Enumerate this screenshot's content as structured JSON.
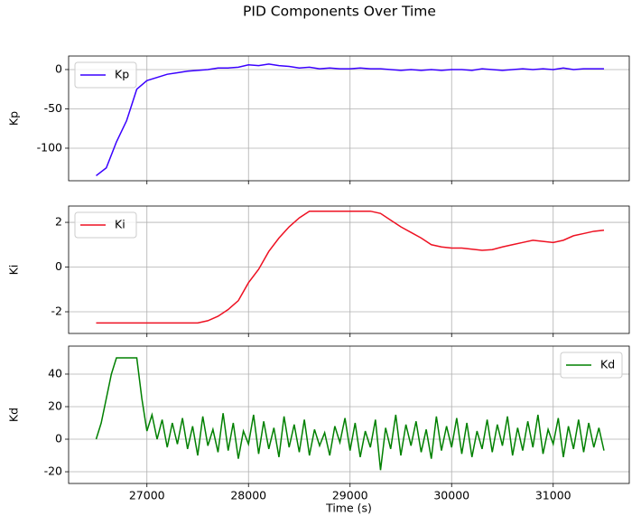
{
  "title": "PID Components Over Time",
  "chart_data": [
    {
      "type": "line",
      "ylabel": "Kp",
      "legend": "upper left",
      "grid": true,
      "xlim": [
        26229,
        31749
      ],
      "xticks": [
        27000,
        28000,
        29000,
        30000,
        31000
      ],
      "ylim": [
        -141.4,
        17.2
      ],
      "yticks": [
        -100,
        -50,
        0
      ],
      "x": [
        26500,
        26600,
        26700,
        26800,
        26900,
        27000,
        27100,
        27200,
        27300,
        27400,
        27500,
        27600,
        27700,
        27800,
        27900,
        28000,
        28100,
        28200,
        28300,
        28400,
        28500,
        28600,
        28700,
        28800,
        28900,
        29000,
        29100,
        29200,
        29300,
        29400,
        29500,
        29600,
        29700,
        29800,
        29900,
        30000,
        30100,
        30200,
        30300,
        30400,
        30500,
        30600,
        30700,
        30800,
        30900,
        31000,
        31100,
        31200,
        31300,
        31400,
        31500
      ],
      "series": [
        {
          "name": "Kp",
          "color": "#3a00ff",
          "values": [
            -135,
            -125,
            -92,
            -65,
            -25,
            -14,
            -10,
            -6,
            -4,
            -2,
            -1,
            0,
            2,
            2,
            3,
            6,
            5,
            7,
            5,
            4,
            2,
            3,
            1,
            2,
            1,
            1,
            2,
            1,
            1,
            0,
            -1,
            0,
            -1,
            0,
            -1,
            0,
            0,
            -1,
            1,
            0,
            -1,
            0,
            1,
            0,
            1,
            0,
            2,
            0,
            1,
            1,
            1
          ]
        }
      ]
    },
    {
      "type": "line",
      "ylabel": "Ki",
      "legend": "upper left",
      "grid": true,
      "xlim": [
        26229,
        31749
      ],
      "xticks": [
        27000,
        28000,
        29000,
        30000,
        31000
      ],
      "ylim": [
        -2.97,
        2.73
      ],
      "yticks": [
        -2,
        0,
        2
      ],
      "x": [
        26500,
        26600,
        26700,
        26800,
        26900,
        27000,
        27100,
        27200,
        27300,
        27400,
        27500,
        27600,
        27700,
        27800,
        27900,
        28000,
        28100,
        28200,
        28300,
        28400,
        28500,
        28600,
        28700,
        28800,
        28900,
        29000,
        29100,
        29200,
        29300,
        29400,
        29500,
        29600,
        29700,
        29800,
        29900,
        30000,
        30100,
        30200,
        30300,
        30400,
        30500,
        30600,
        30700,
        30800,
        30900,
        31000,
        31100,
        31200,
        31300,
        31400,
        31500
      ],
      "series": [
        {
          "name": "Ki",
          "color": "#ee1122",
          "values": [
            -2.5,
            -2.5,
            -2.5,
            -2.5,
            -2.5,
            -2.5,
            -2.5,
            -2.5,
            -2.5,
            -2.5,
            -2.5,
            -2.4,
            -2.2,
            -1.9,
            -1.5,
            -0.7,
            -0.1,
            0.7,
            1.3,
            1.8,
            2.2,
            2.5,
            2.5,
            2.5,
            2.5,
            2.5,
            2.5,
            2.5,
            2.4,
            2.1,
            1.8,
            1.55,
            1.3,
            1.0,
            0.9,
            0.85,
            0.85,
            0.8,
            0.75,
            0.78,
            0.9,
            1.0,
            1.1,
            1.2,
            1.15,
            1.1,
            1.2,
            1.4,
            1.5,
            1.6,
            1.65
          ]
        }
      ]
    },
    {
      "type": "line",
      "ylabel": "Kd",
      "xlabel": "Time (s)",
      "legend": "upper right",
      "grid": true,
      "xlim": [
        26229,
        31749
      ],
      "xticks": [
        27000,
        28000,
        29000,
        30000,
        31000
      ],
      "ylim": [
        -27.2,
        57.2
      ],
      "yticks": [
        -20,
        0,
        20,
        40
      ],
      "x": [
        26500,
        26550,
        26600,
        26650,
        26700,
        26750,
        26800,
        26850,
        26900,
        26950,
        27000,
        27050,
        27100,
        27150,
        27200,
        27250,
        27300,
        27350,
        27400,
        27450,
        27500,
        27550,
        27600,
        27650,
        27700,
        27750,
        27800,
        27850,
        27900,
        27950,
        28000,
        28050,
        28100,
        28150,
        28200,
        28250,
        28300,
        28350,
        28400,
        28450,
        28500,
        28550,
        28600,
        28650,
        28700,
        28750,
        28800,
        28850,
        28900,
        28950,
        29000,
        29050,
        29100,
        29150,
        29200,
        29250,
        29300,
        29350,
        29400,
        29450,
        29500,
        29550,
        29600,
        29650,
        29700,
        29750,
        29800,
        29850,
        29900,
        29950,
        30000,
        30050,
        30100,
        30150,
        30200,
        30250,
        30300,
        30350,
        30400,
        30450,
        30500,
        30550,
        30600,
        30650,
        30700,
        30750,
        30800,
        30850,
        30900,
        30950,
        31000,
        31050,
        31100,
        31150,
        31200,
        31250,
        31300,
        31350,
        31400,
        31450,
        31500
      ],
      "series": [
        {
          "name": "Kd",
          "color": "#008000",
          "values": [
            0,
            10,
            25,
            40,
            50,
            50,
            50,
            50,
            50,
            25,
            5,
            15,
            0,
            12,
            -5,
            10,
            -3,
            13,
            -6,
            8,
            -10,
            14,
            -4,
            6,
            -8,
            16,
            -7,
            10,
            -12,
            5,
            -3,
            15,
            -9,
            11,
            -6,
            7,
            -11,
            14,
            -5,
            9,
            -8,
            12,
            -10,
            6,
            -4,
            4,
            -10,
            8,
            -2,
            13,
            -7,
            10,
            -11,
            5,
            -5,
            12,
            -19,
            7,
            -6,
            15,
            -10,
            9,
            -4,
            11,
            -8,
            6,
            -12,
            14,
            -7,
            8,
            -5,
            13,
            -9,
            10,
            -11,
            5,
            -6,
            12,
            -8,
            9,
            -4,
            14,
            -10,
            7,
            -7,
            11,
            -5,
            15,
            -9,
            6,
            -3,
            13,
            -11,
            8,
            -6,
            12,
            -8,
            10,
            -5,
            7,
            -7
          ]
        }
      ]
    }
  ]
}
